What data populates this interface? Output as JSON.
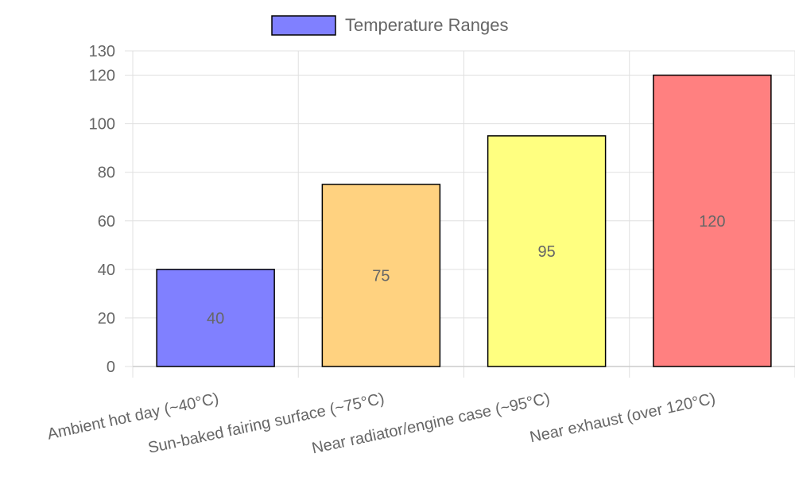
{
  "chart_data": {
    "type": "bar",
    "categories": [
      "Ambient hot day (~40°C)",
      "Sun-baked fairing surface (~75°C)",
      "Near radiator/engine case (~95°C)",
      "Near exhaust (over 120°C)"
    ],
    "series": [
      {
        "name": "Temperature Ranges",
        "values": [
          40,
          75,
          95,
          120
        ],
        "colors": [
          "#8080ff",
          "#ffd280",
          "#ffff80",
          "#ff8080"
        ],
        "border_color": "#000000"
      }
    ],
    "ylim": [
      0,
      130
    ],
    "yticks": [
      0,
      20,
      40,
      60,
      80,
      100,
      120,
      130
    ],
    "data_labels": [
      "40",
      "75",
      "95",
      "120"
    ],
    "legend": {
      "position": "top",
      "label": "Temperature Ranges",
      "swatch_color": "#8080ff"
    },
    "grid": true
  }
}
